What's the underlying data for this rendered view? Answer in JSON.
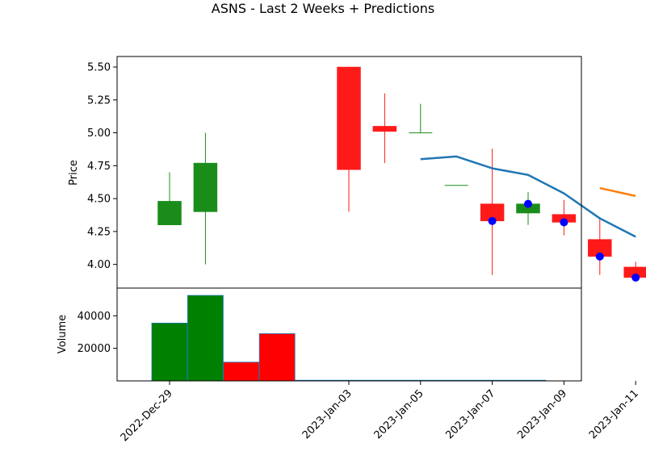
{
  "chart_data": {
    "type": "candlestick",
    "title": "ASNS - Last 2 Weeks + Predictions",
    "price_panel": {
      "ylabel": "Price",
      "ylim": [
        3.82,
        5.58
      ],
      "yticks": [
        "5.50",
        "5.25",
        "5.00",
        "4.75",
        "4.50",
        "4.25",
        "4.00"
      ],
      "ytick_values": [
        5.5,
        5.25,
        5.0,
        4.75,
        4.5,
        4.25,
        4.0
      ],
      "candles": [
        {
          "date": "2022-Dec-29",
          "open": 4.3,
          "close": 4.48,
          "high": 4.7,
          "low": 4.3
        },
        {
          "date": "2022-Dec-30",
          "open": 4.4,
          "close": 4.77,
          "high": 5.0,
          "low": 4.0
        },
        {
          "date": "2023-Jan-03",
          "open": 5.5,
          "close": 4.72,
          "high": 5.5,
          "low": 4.4
        },
        {
          "date": "2023-Jan-04",
          "open": 5.05,
          "close": 5.01,
          "high": 5.3,
          "low": 4.77
        },
        {
          "date": "2023-Jan-05",
          "open": 5.0,
          "close": 5.0,
          "high": 5.22,
          "low": 5.0
        },
        {
          "date": "2023-Jan-06",
          "open": 4.6,
          "close": 4.6,
          "high": 4.6,
          "low": 4.6
        },
        {
          "date": "2023-Jan-07",
          "open": 4.46,
          "close": 4.33,
          "high": 4.88,
          "low": 3.92
        },
        {
          "date": "2023-Jan-08",
          "open": 4.39,
          "close": 4.46,
          "high": 4.55,
          "low": 4.3
        },
        {
          "date": "2023-Jan-09",
          "open": 4.38,
          "close": 4.32,
          "high": 4.49,
          "low": 4.22
        },
        {
          "date": "2023-Jan-10",
          "open": 4.19,
          "close": 4.06,
          "high": 4.35,
          "low": 3.92
        },
        {
          "date": "2023-Jan-11",
          "open": 3.98,
          "close": 3.9,
          "high": 4.02,
          "low": 3.9
        }
      ],
      "prediction_line": {
        "color": "#1f77b4",
        "x": [
          "2023-Jan-05",
          "2023-Jan-06",
          "2023-Jan-07",
          "2023-Jan-08",
          "2023-Jan-09",
          "2023-Jan-10",
          "2023-Jan-11"
        ],
        "y": [
          4.8,
          4.82,
          4.73,
          4.68,
          4.54,
          4.35,
          4.21
        ]
      },
      "second_prediction_line": {
        "color": "#ff7f0e",
        "x": [
          "2023-Jan-10",
          "2023-Jan-11"
        ],
        "y": [
          4.58,
          4.52
        ]
      },
      "markers": {
        "color": "#0000ff",
        "x": [
          "2023-Jan-07",
          "2023-Jan-08",
          "2023-Jan-09",
          "2023-Jan-10",
          "2023-Jan-11"
        ],
        "y": [
          4.33,
          4.46,
          4.32,
          4.06,
          3.9
        ]
      }
    },
    "volume_panel": {
      "ylabel": "Volume",
      "ylim": [
        0,
        57000
      ],
      "yticks": [
        "40000",
        "20000"
      ],
      "ytick_values": [
        40000,
        20000
      ],
      "bars": [
        {
          "date": "2022-Dec-29",
          "value": 35500,
          "color": "green"
        },
        {
          "date": "2022-Dec-30",
          "value": 52500,
          "color": "green"
        },
        {
          "date": "2023-Jan-03",
          "value": 11500,
          "color": "red"
        },
        {
          "date": "2023-Jan-04",
          "value": 29000,
          "color": "red"
        },
        {
          "date": "2023-Jan-05",
          "value": 400,
          "color": "red"
        },
        {
          "date": "2023-Jan-06",
          "value": 300,
          "color": "red"
        },
        {
          "date": "2023-Jan-07",
          "value": 0,
          "color": "red"
        },
        {
          "date": "2023-Jan-08",
          "value": 0,
          "color": "green"
        },
        {
          "date": "2023-Jan-09",
          "value": 0,
          "color": "red"
        },
        {
          "date": "2023-Jan-10",
          "value": 0,
          "color": "red"
        },
        {
          "date": "2023-Jan-11",
          "value": 0,
          "color": "red"
        }
      ]
    },
    "x_tick_labels": [
      "2022-Dec-29",
      "2023-Jan-03",
      "2023-Jan-05",
      "2023-Jan-07",
      "2023-Jan-09",
      "2023-Jan-11"
    ],
    "x_tick_dates": [
      "2022-Dec-29",
      "2023-Jan-03",
      "2023-Jan-05",
      "2023-Jan-07",
      "2023-Jan-09",
      "2023-Jan-11"
    ],
    "up_color": "#1a8c1a",
    "down_color": "#ff1a1a",
    "volume_up_color": "#008000",
    "volume_down_color": "#ff0000"
  }
}
